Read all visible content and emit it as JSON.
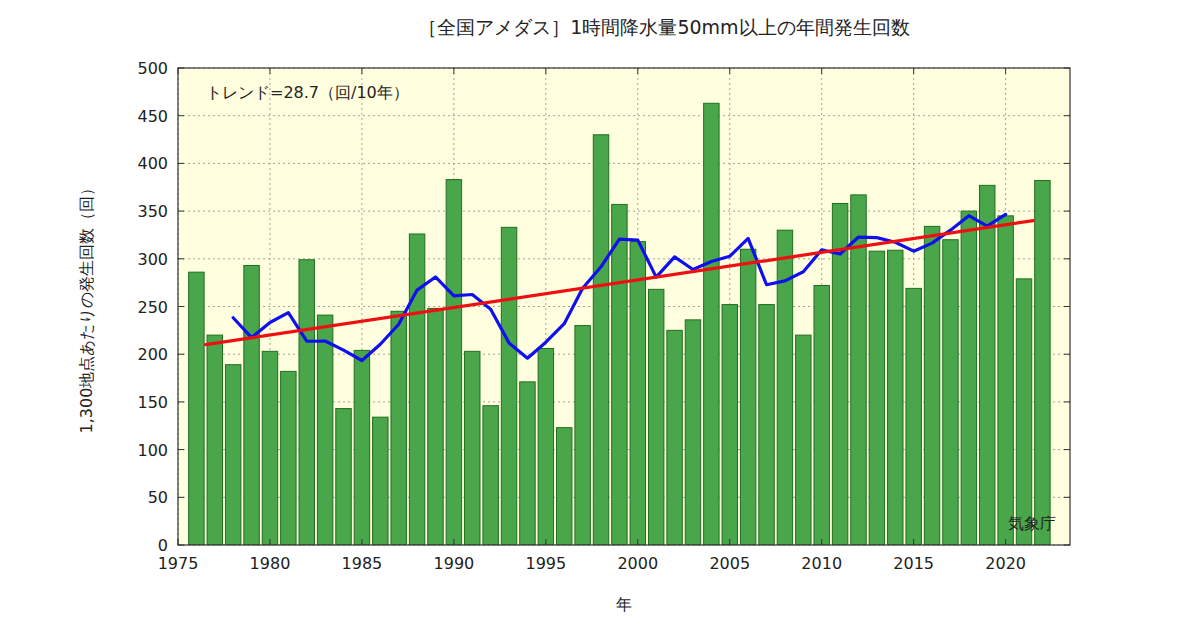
{
  "chart_data": {
    "type": "bar",
    "title": "［全国アメダス］1時間降水量50mm以上の年間発生回数",
    "x_label": "年",
    "y_label": "1,300地点あたりの発生回数（回）",
    "annotations": [
      "トレンド=28.7（回/10年）",
      "気象庁"
    ],
    "x": [
      1976,
      1977,
      1978,
      1979,
      1980,
      1981,
      1982,
      1983,
      1984,
      1985,
      1986,
      1987,
      1988,
      1989,
      1990,
      1991,
      1992,
      1993,
      1994,
      1995,
      1996,
      1997,
      1998,
      1999,
      2000,
      2001,
      2002,
      2003,
      2004,
      2005,
      2006,
      2007,
      2008,
      2009,
      2010,
      2011,
      2012,
      2013,
      2014,
      2015,
      2016,
      2017,
      2018,
      2019,
      2020,
      2021,
      2022
    ],
    "series": [
      {
        "type": "bar",
        "color": "#4aa64a",
        "values": [
          286,
          220,
          189,
          293,
          203,
          182,
          299,
          241,
          143,
          204,
          134,
          245,
          326,
          248,
          383,
          203,
          146,
          333,
          171,
          206,
          123,
          230,
          430,
          357,
          318,
          268,
          225,
          236,
          463,
          252,
          310,
          252,
          330,
          220,
          272,
          358,
          367,
          308,
          309,
          269,
          334,
          320,
          350,
          377,
          345,
          279,
          382
        ]
      },
      {
        "type": "line",
        "color": "#1010ee",
        "values": [
          null,
          null,
          238.2,
          217.4,
          233.2,
          243.6,
          213.6,
          213.8,
          204.2,
          193.4,
          210.4,
          231.4,
          267.2,
          281,
          261.2,
          262.6,
          247.2,
          211.8,
          195.8,
          212.6,
          232,
          269.2,
          291.6,
          320.6,
          319.6,
          280.8,
          302,
          288.8,
          297.2,
          302.6,
          321.4,
          272.8,
          276.8,
          286.4,
          309.4,
          305,
          322.8,
          322.2,
          317.4,
          308,
          316.4,
          330,
          345.2,
          334.2,
          346.6,
          null,
          null
        ]
      },
      {
        "type": "line",
        "color": "#ee1010",
        "x": [
          1976.5,
          2021.5
        ],
        "values": [
          210,
          340
        ]
      }
    ],
    "xlim": [
      1975,
      2023.5
    ],
    "xticks": [
      1975,
      1980,
      1985,
      1990,
      1995,
      2000,
      2005,
      2010,
      2015,
      2020
    ],
    "ylim": [
      0,
      500
    ],
    "yticks": [
      0,
      50,
      100,
      150,
      200,
      250,
      300,
      350,
      400,
      450,
      500
    ],
    "grid": true
  }
}
